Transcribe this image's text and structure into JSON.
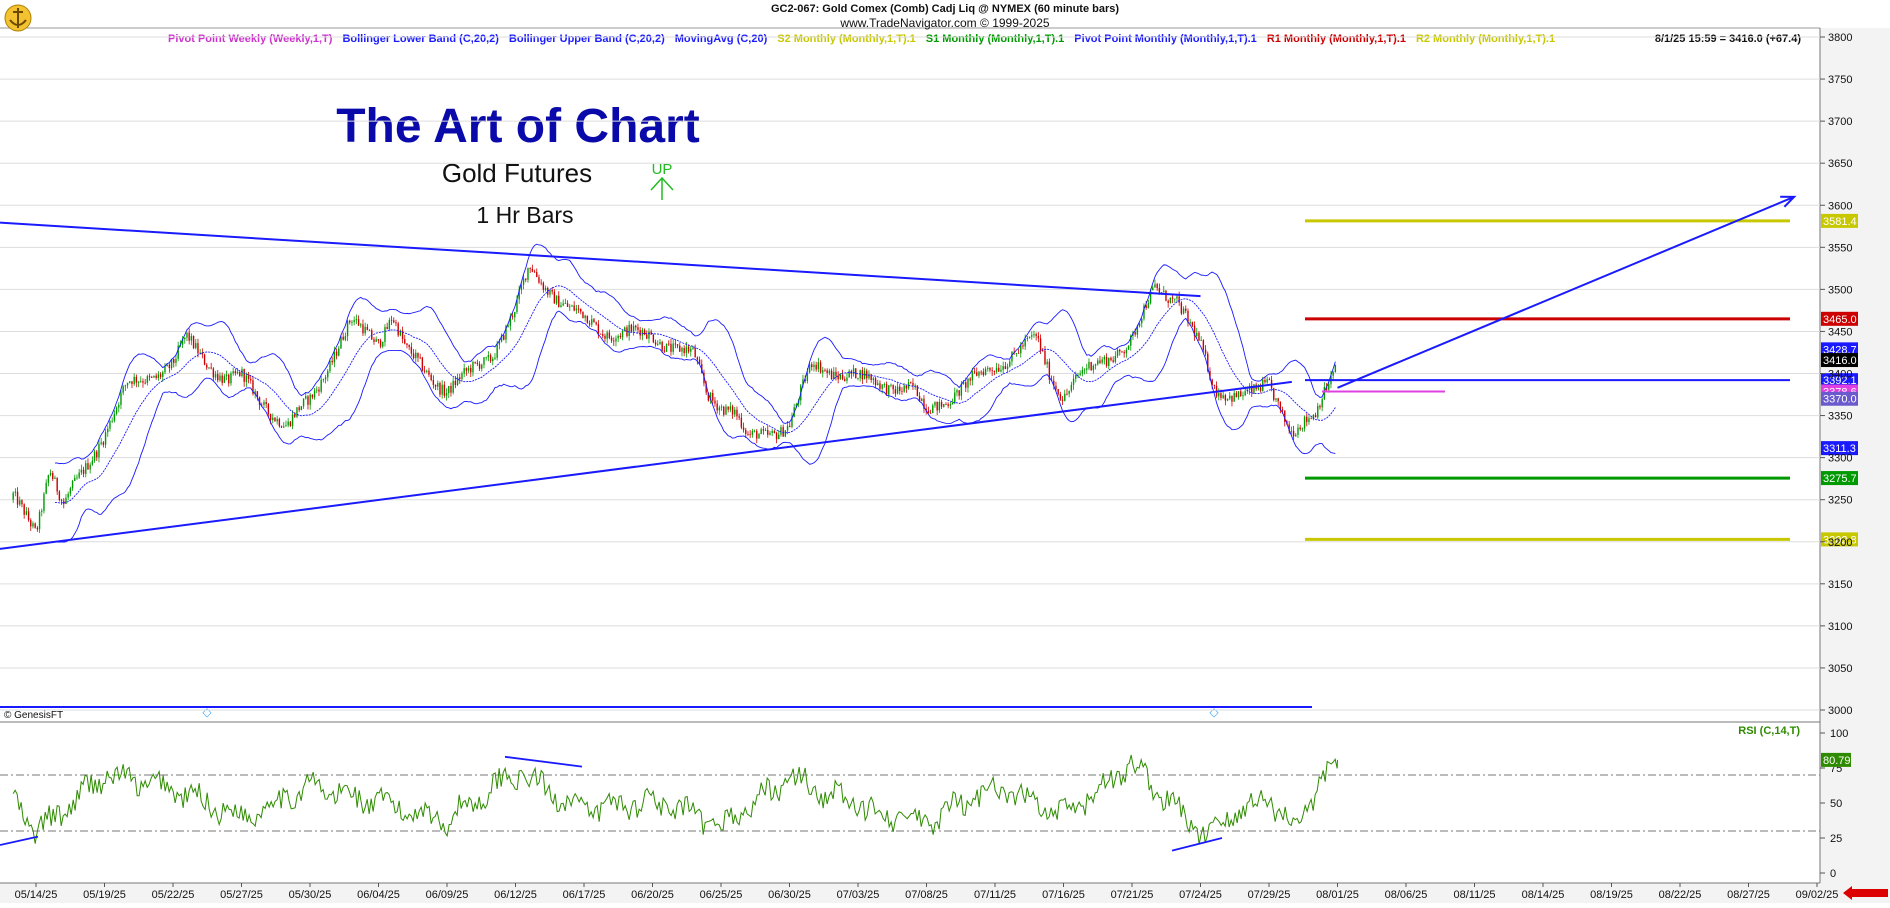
{
  "header": {
    "title": "GC2-067: Gold Comex (Comb) Cadj Liq @ NYMEX (60 minute bars)",
    "subtitle": "www.TradeNavigator.com © 1999-2025"
  },
  "legend": [
    {
      "text": "Pivot Point Weekly (Weekly,1,T)",
      "color": "#cc33cc"
    },
    {
      "text": "Bollinger Lower Band (C,20,2)",
      "color": "#1a1aff"
    },
    {
      "text": "Bollinger Upper Band (C,20,2)",
      "color": "#1a1aff"
    },
    {
      "text": "MovingAvg (C,20)",
      "color": "#1a1aff"
    },
    {
      "text": "S2 Monthly (Monthly,1,T).1",
      "color": "#c8c800"
    },
    {
      "text": "S1 Monthly (Monthly,1,T).1",
      "color": "#009900"
    },
    {
      "text": "Pivot Point Monthly (Monthly,1,T).1",
      "color": "#1a1aff"
    },
    {
      "text": "R1 Monthly (Monthly,1,T).1",
      "color": "#cc0000"
    },
    {
      "text": "R2 Monthly (Monthly,1,T).1",
      "color": "#c8c800"
    }
  ],
  "last_quote": "8/1/25 15:59 = 3416.0 (+67.4)",
  "annotations": {
    "main_title": "The Art of Chart",
    "subtitle1": "Gold Futures",
    "subtitle2": "1 Hr Bars",
    "up_marker": "UP",
    "copyright": "© GenesisFT"
  },
  "colors": {
    "candle_up": "#009900",
    "candle_down": "#cc0000",
    "bollinger": "#1a1aff",
    "trendline": "#1a1aff",
    "rsi": "#2e8b00",
    "pivot_weekly": "#e040e0",
    "s2": "#c8c800",
    "s1": "#009900",
    "pivot_monthly": "#1a1aff",
    "r1": "#cc0000",
    "r2": "#c8c800",
    "axis_bg": "#f0f0f0"
  },
  "chart_data": [
    {
      "type": "candlestick",
      "name": "price",
      "ylim": [
        3000,
        3800
      ],
      "yticks": [
        3000,
        3050,
        3100,
        3150,
        3200,
        3250,
        3300,
        3350,
        3400,
        3450,
        3500,
        3550,
        3600,
        3650,
        3700,
        3750,
        3800
      ],
      "x_tick_labels": [
        "05/14/25",
        "05/19/25",
        "05/22/25",
        "05/27/25",
        "05/30/25",
        "06/04/25",
        "06/09/25",
        "06/12/25",
        "06/17/25",
        "06/20/25",
        "06/25/25",
        "06/30/25",
        "07/03/25",
        "07/08/25",
        "07/11/25",
        "07/16/25",
        "07/21/25",
        "07/24/25",
        "07/29/25",
        "08/01/25",
        "08/06/25",
        "08/11/25",
        "08/14/25",
        "08/19/25",
        "08/22/25",
        "08/27/25",
        "09/02/25"
      ],
      "price_path": [
        {
          "date": "05/13/25",
          "close": 3250
        },
        {
          "date": "05/14/25",
          "close": 3215
        },
        {
          "date": "05/15/25",
          "close": 3290
        },
        {
          "date": "05/16/25",
          "close": 3240
        },
        {
          "date": "05/19/25",
          "close": 3330
        },
        {
          "date": "05/20/25",
          "close": 3385
        },
        {
          "date": "05/22/25",
          "close": 3410
        },
        {
          "date": "05/23/25",
          "close": 3440
        },
        {
          "date": "05/26/25",
          "close": 3390
        },
        {
          "date": "05/27/25",
          "close": 3395
        },
        {
          "date": "05/29/25",
          "close": 3335
        },
        {
          "date": "05/30/25",
          "close": 3370
        },
        {
          "date": "06/02/25",
          "close": 3460
        },
        {
          "date": "06/04/25",
          "close": 3440
        },
        {
          "date": "06/05/25",
          "close": 3470
        },
        {
          "date": "06/06/25",
          "close": 3425
        },
        {
          "date": "06/09/25",
          "close": 3380
        },
        {
          "date": "06/10/25",
          "close": 3400
        },
        {
          "date": "06/11/25",
          "close": 3425
        },
        {
          "date": "06/12/25",
          "close": 3475
        },
        {
          "date": "06/13/25",
          "close": 3525
        },
        {
          "date": "06/16/25",
          "close": 3475
        },
        {
          "date": "06/17/25",
          "close": 3465
        },
        {
          "date": "06/18/25",
          "close": 3450
        },
        {
          "date": "06/20/25",
          "close": 3445
        },
        {
          "date": "06/23/25",
          "close": 3420
        },
        {
          "date": "06/24/25",
          "close": 3375
        },
        {
          "date": "06/26/25",
          "close": 3355
        },
        {
          "date": "06/27/25",
          "close": 3320
        },
        {
          "date": "06/30/25",
          "close": 3340
        },
        {
          "date": "07/01/25",
          "close": 3410
        },
        {
          "date": "07/03/25",
          "close": 3395
        },
        {
          "date": "07/07/25",
          "close": 3380
        },
        {
          "date": "07/08/25",
          "close": 3355
        },
        {
          "date": "07/10/25",
          "close": 3390
        },
        {
          "date": "07/11/25",
          "close": 3410
        },
        {
          "date": "07/14/25",
          "close": 3440
        },
        {
          "date": "07/15/25",
          "close": 3400
        },
        {
          "date": "07/16/25",
          "close": 3375
        },
        {
          "date": "07/17/25",
          "close": 3395
        },
        {
          "date": "07/18/25",
          "close": 3405
        },
        {
          "date": "07/21/25",
          "close": 3440
        },
        {
          "date": "07/22/25",
          "close": 3500
        },
        {
          "date": "07/23/25",
          "close": 3490
        },
        {
          "date": "07/24/25",
          "close": 3430
        },
        {
          "date": "07/25/25",
          "close": 3380
        },
        {
          "date": "07/28/25",
          "close": 3375
        },
        {
          "date": "07/29/25",
          "close": 3385
        },
        {
          "date": "07/30/25",
          "close": 3335
        },
        {
          "date": "07/31/25",
          "close": 3345
        },
        {
          "date": "08/01/25",
          "close": 3416
        }
      ],
      "levels": [
        {
          "name": "R2 Monthly",
          "value": 3581.4,
          "label": "3581.4"
        },
        {
          "name": "R1 Monthly",
          "value": 3465.0,
          "label": "3465.0"
        },
        {
          "name": "Bollinger Upper",
          "value": 3428.7,
          "label": "3428.7"
        },
        {
          "name": "Last",
          "value": 3416.0,
          "label": "3416.0"
        },
        {
          "name": "Pivot Point Monthly",
          "value": 3392.1,
          "label": "3392.1"
        },
        {
          "name": "Pivot Point Weekly",
          "value": 3378.6,
          "label": "3378.6"
        },
        {
          "name": "MovingAvg",
          "value": 3370.0,
          "label": "3370.0"
        },
        {
          "name": "Bollinger Lower",
          "value": 3311.3,
          "label": "3311.3"
        },
        {
          "name": "S1 Monthly",
          "value": 3275.7,
          "label": "3275.7"
        },
        {
          "name": "S2 Monthly",
          "value": 3202.8,
          "label": "3202.8"
        }
      ],
      "trendlines": [
        {
          "name": "upper-trendline",
          "from": {
            "date": "05/12/25",
            "value": 3580
          },
          "to": {
            "date": "07/24/25",
            "value": 3492
          }
        },
        {
          "name": "lower-trendline",
          "from": {
            "date": "05/12/25",
            "value": 3190
          },
          "to": {
            "date": "07/30/25",
            "value": 3390
          }
        },
        {
          "name": "projection-arrow",
          "from": {
            "date": "08/01/25",
            "value": 3383
          },
          "to": {
            "date": "08/31/25",
            "value": 3610
          }
        }
      ]
    },
    {
      "type": "line",
      "name": "RSI",
      "title": "RSI (C,14,T)",
      "ylim": [
        0,
        100
      ],
      "yticks": [
        0,
        25,
        50,
        75,
        100
      ],
      "reference_lines": [
        30,
        70
      ],
      "last_value": 80.79,
      "last_label": "80.79",
      "path": [
        {
          "date": "05/13/25",
          "value": 55
        },
        {
          "date": "05/14/25",
          "value": 28
        },
        {
          "date": "05/16/25",
          "value": 45
        },
        {
          "date": "05/19/25",
          "value": 70
        },
        {
          "date": "05/22/25",
          "value": 60
        },
        {
          "date": "05/27/25",
          "value": 40
        },
        {
          "date": "05/30/25",
          "value": 62
        },
        {
          "date": "06/04/25",
          "value": 50
        },
        {
          "date": "06/09/25",
          "value": 38
        },
        {
          "date": "06/12/25",
          "value": 72
        },
        {
          "date": "06/17/25",
          "value": 45
        },
        {
          "date": "06/20/25",
          "value": 52
        },
        {
          "date": "06/25/25",
          "value": 33
        },
        {
          "date": "06/30/25",
          "value": 68
        },
        {
          "date": "07/03/25",
          "value": 48
        },
        {
          "date": "07/08/25",
          "value": 35
        },
        {
          "date": "07/11/25",
          "value": 62
        },
        {
          "date": "07/16/25",
          "value": 40
        },
        {
          "date": "07/21/25",
          "value": 78
        },
        {
          "date": "07/24/25",
          "value": 28
        },
        {
          "date": "07/29/25",
          "value": 55
        },
        {
          "date": "07/30/25",
          "value": 32
        },
        {
          "date": "08/01/25",
          "value": 80.79
        }
      ]
    }
  ]
}
